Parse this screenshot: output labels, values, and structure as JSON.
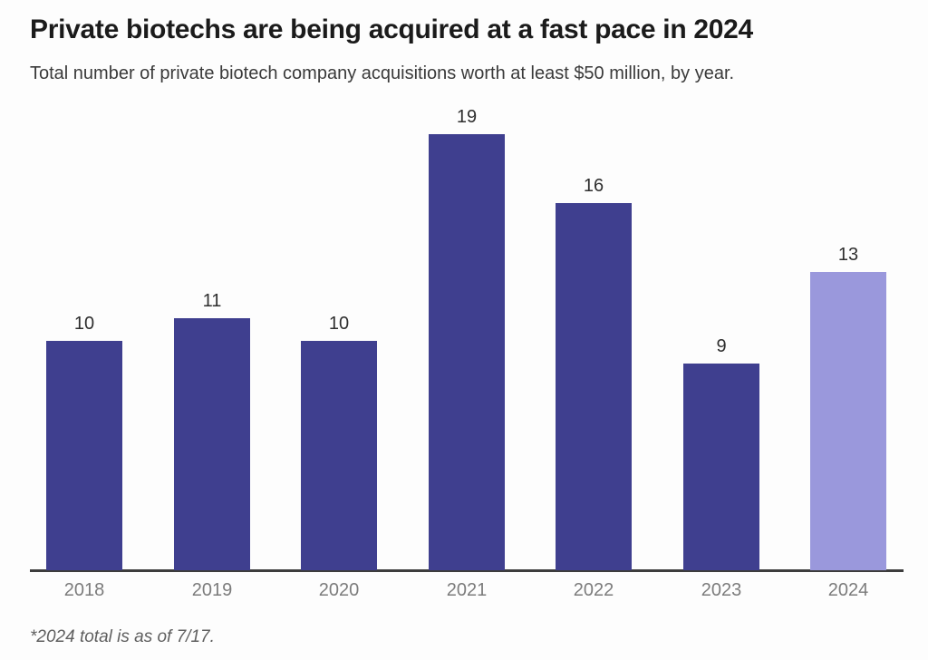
{
  "chart_data": {
    "type": "bar",
    "title": "Private biotechs are being acquired at a fast pace in 2024",
    "subtitle": "Total number of private biotech company acquisitions worth at least $50 million, by year.",
    "footnote": "*2024 total is as of 7/17.",
    "categories": [
      "2018",
      "2019",
      "2020",
      "2021",
      "2022",
      "2023",
      "2024"
    ],
    "values": [
      10,
      11,
      10,
      19,
      16,
      9,
      13
    ],
    "data_labels_shown": true,
    "highlighted_category": "2024",
    "xlabel": "",
    "ylabel": "",
    "ylim": [
      0,
      20
    ],
    "grid": false,
    "legend": false,
    "colors": {
      "bar": "#3f3f8f",
      "highlight_bar": "#9a98dc",
      "axis_line": "#3d3d3d",
      "tick_label": "#7c7c7c",
      "data_label": "#2e2e2e",
      "title": "#1b1b1b",
      "subtitle": "#3a3a3a",
      "footnote": "#5f5f5f",
      "background": "#fdfdfd"
    }
  }
}
